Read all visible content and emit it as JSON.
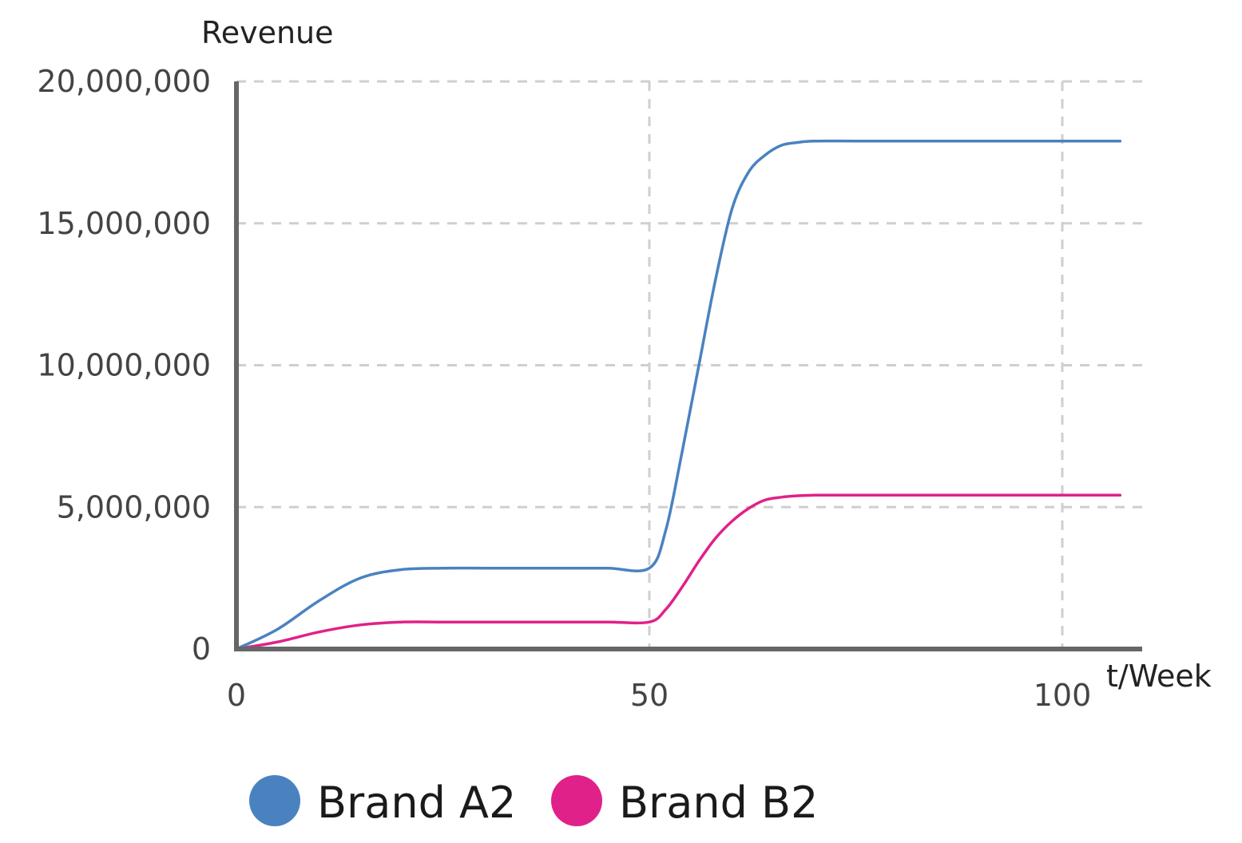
{
  "chart_data": {
    "type": "line",
    "xlabel": "t/Week",
    "ylabel": "Revenue",
    "xlim": [
      0,
      110
    ],
    "ylim": [
      0,
      20000000
    ],
    "x_ticks": [
      0,
      50,
      100
    ],
    "x_tick_labels": [
      "0",
      "50",
      "100"
    ],
    "y_ticks": [
      0,
      5000000,
      10000000,
      15000000,
      20000000
    ],
    "y_tick_labels": [
      "0",
      "5,000,000",
      "10,000,000",
      "15,000,000",
      "20,000,000"
    ],
    "grid": true,
    "legend_position": "bottom",
    "series": [
      {
        "name": "Brand A2",
        "color": "#4a82c0",
        "x": [
          0,
          5,
          10,
          15,
          20,
          25,
          30,
          35,
          40,
          45,
          50,
          52,
          54,
          56,
          58,
          60,
          62,
          64,
          66,
          68,
          70,
          75,
          80,
          90,
          100,
          107
        ],
        "y": [
          0,
          700000,
          1700000,
          2500000,
          2800000,
          2850000,
          2850000,
          2850000,
          2850000,
          2850000,
          2850000,
          4200000,
          7000000,
          10000000,
          13000000,
          15500000,
          16800000,
          17400000,
          17750000,
          17850000,
          17900000,
          17900000,
          17900000,
          17900000,
          17900000,
          17900000
        ]
      },
      {
        "name": "Brand B2",
        "color": "#e0218a",
        "x": [
          0,
          5,
          10,
          15,
          20,
          25,
          30,
          35,
          40,
          45,
          50,
          52,
          54,
          56,
          58,
          60,
          62,
          64,
          66,
          68,
          70,
          75,
          80,
          90,
          100,
          107
        ],
        "y": [
          0,
          250000,
          600000,
          850000,
          950000,
          950000,
          950000,
          950000,
          950000,
          950000,
          950000,
          1400000,
          2200000,
          3100000,
          3900000,
          4500000,
          4950000,
          5250000,
          5350000,
          5400000,
          5420000,
          5420000,
          5420000,
          5420000,
          5420000,
          5420000
        ]
      },
      {
        "name": "",
        "color": "#8a1a3c",
        "x": [
          0,
          20,
          50,
          107
        ],
        "y": [
          0,
          0,
          0,
          0
        ]
      }
    ]
  }
}
